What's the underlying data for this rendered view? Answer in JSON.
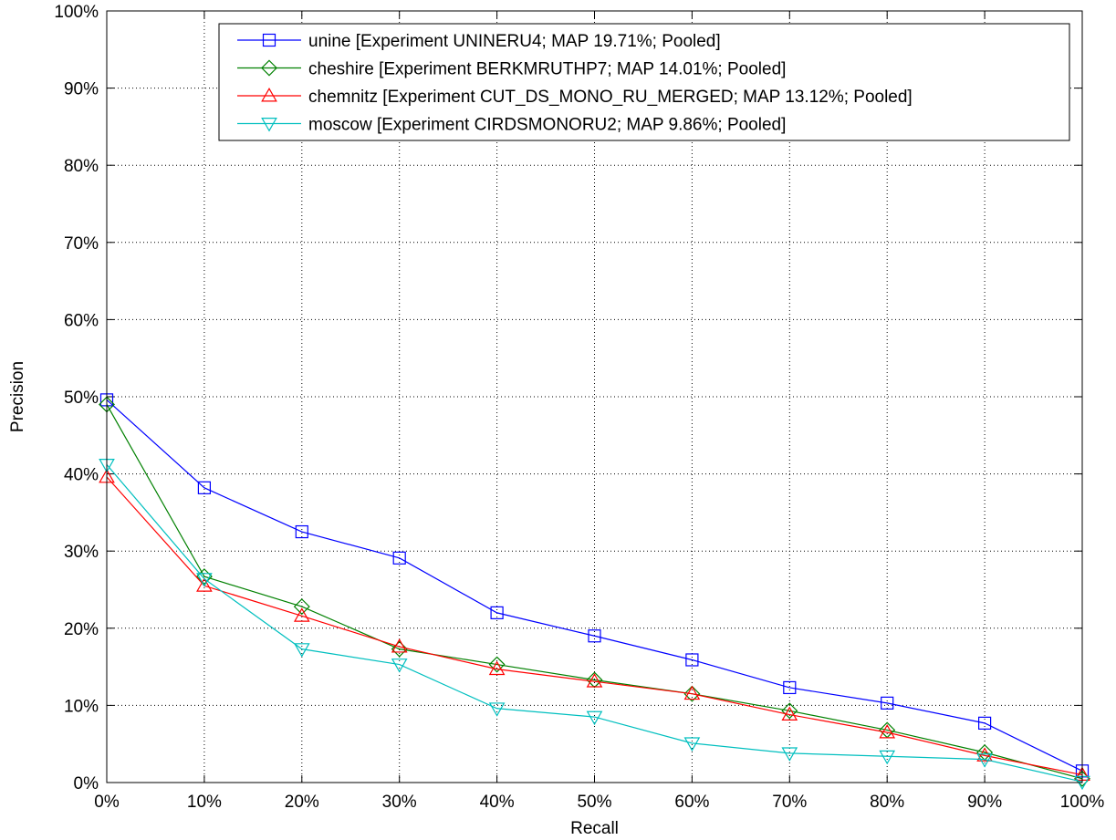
{
  "chart_data": {
    "type": "line",
    "xlabel": "Recall",
    "ylabel": "Precision",
    "x": [
      0,
      10,
      20,
      30,
      40,
      50,
      60,
      70,
      80,
      90,
      100
    ],
    "xlim": [
      0,
      100
    ],
    "ylim": [
      0,
      100
    ],
    "x_ticks": [
      "0%",
      "10%",
      "20%",
      "30%",
      "40%",
      "50%",
      "60%",
      "70%",
      "80%",
      "90%",
      "100%"
    ],
    "y_ticks": [
      "0%",
      "10%",
      "20%",
      "30%",
      "40%",
      "50%",
      "60%",
      "70%",
      "80%",
      "90%",
      "100%"
    ],
    "grid": true,
    "legend_position": "top-right",
    "series": [
      {
        "name": "unine [Experiment UNINERU4; MAP 19.71%; Pooled]",
        "color": "#0000ff",
        "marker": "square",
        "values": [
          49.6,
          38.2,
          32.5,
          29.1,
          22.0,
          19.0,
          15.9,
          12.3,
          10.3,
          7.7,
          1.5
        ]
      },
      {
        "name": "cheshire [Experiment BERKMRUTHP7; MAP 14.01%; Pooled]",
        "color": "#008000",
        "marker": "diamond",
        "values": [
          49.0,
          26.7,
          22.8,
          17.3,
          15.3,
          13.3,
          11.5,
          9.3,
          6.8,
          3.9,
          0.5
        ]
      },
      {
        "name": "chemnitz [Experiment CUT_DS_MONO_RU_MERGED; MAP 13.12%; Pooled]",
        "color": "#ff0000",
        "marker": "triangle-up",
        "values": [
          39.6,
          25.5,
          21.6,
          17.6,
          14.7,
          13.1,
          11.5,
          8.8,
          6.5,
          3.5,
          1.0
        ]
      },
      {
        "name": "moscow [Experiment CIRDSMONORU2; MAP 9.86%; Pooled]",
        "color": "#00bfbf",
        "marker": "triangle-down",
        "values": [
          41.2,
          26.4,
          17.3,
          15.3,
          9.6,
          8.5,
          5.1,
          3.8,
          3.4,
          3.0,
          0.1
        ]
      }
    ]
  }
}
